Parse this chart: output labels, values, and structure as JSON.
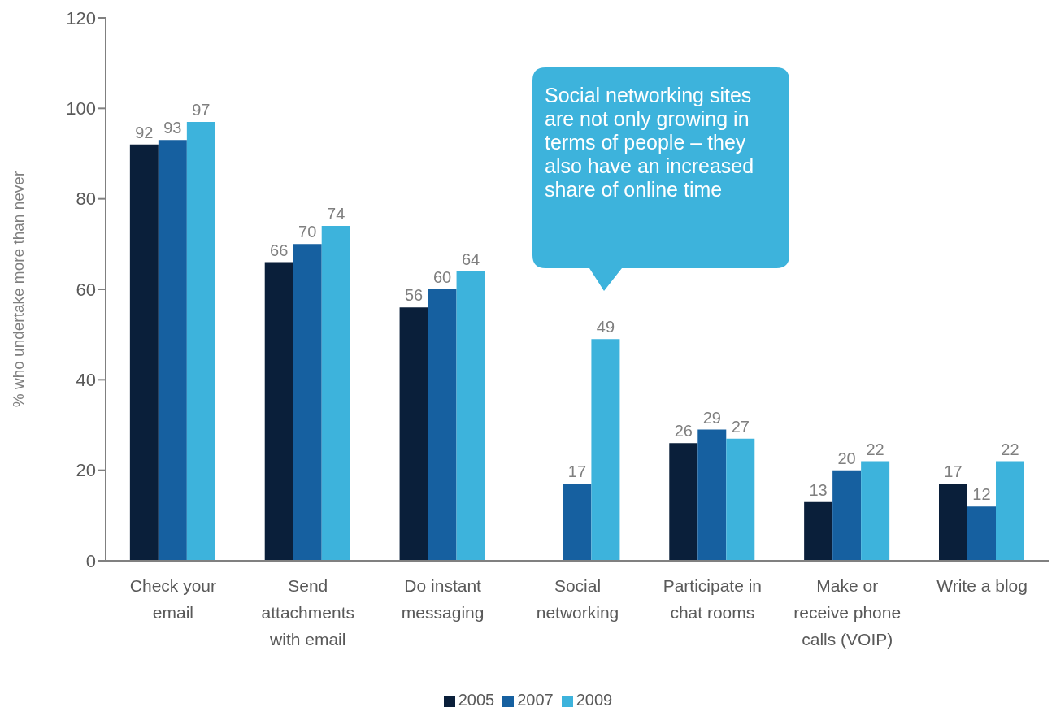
{
  "chart_data": {
    "type": "bar",
    "ylabel": "% who undertake more than never",
    "categories": [
      "Check your email",
      "Send attachments with email",
      "Do instant messaging",
      "Social networking",
      "Participate in chat rooms",
      "Make or receive phone calls (VOIP)",
      "Write a blog"
    ],
    "series": [
      {
        "name": "2005",
        "color": "#0a1f3a",
        "values": [
          92,
          66,
          56,
          null,
          26,
          13,
          17
        ]
      },
      {
        "name": "2007",
        "color": "#1660a0",
        "values": [
          93,
          70,
          60,
          17,
          29,
          20,
          12
        ]
      },
      {
        "name": "2009",
        "color": "#3db3dc",
        "values": [
          97,
          74,
          64,
          49,
          27,
          22,
          22
        ]
      }
    ],
    "ylim": [
      0,
      120
    ],
    "yticks": [
      0,
      20,
      40,
      60,
      80,
      100,
      120
    ],
    "grid": false,
    "legend": "bottom",
    "data_labels": true,
    "annotations": [
      "Social networking sites are not only growing in terms of people – they also have an increased share of online time"
    ]
  }
}
